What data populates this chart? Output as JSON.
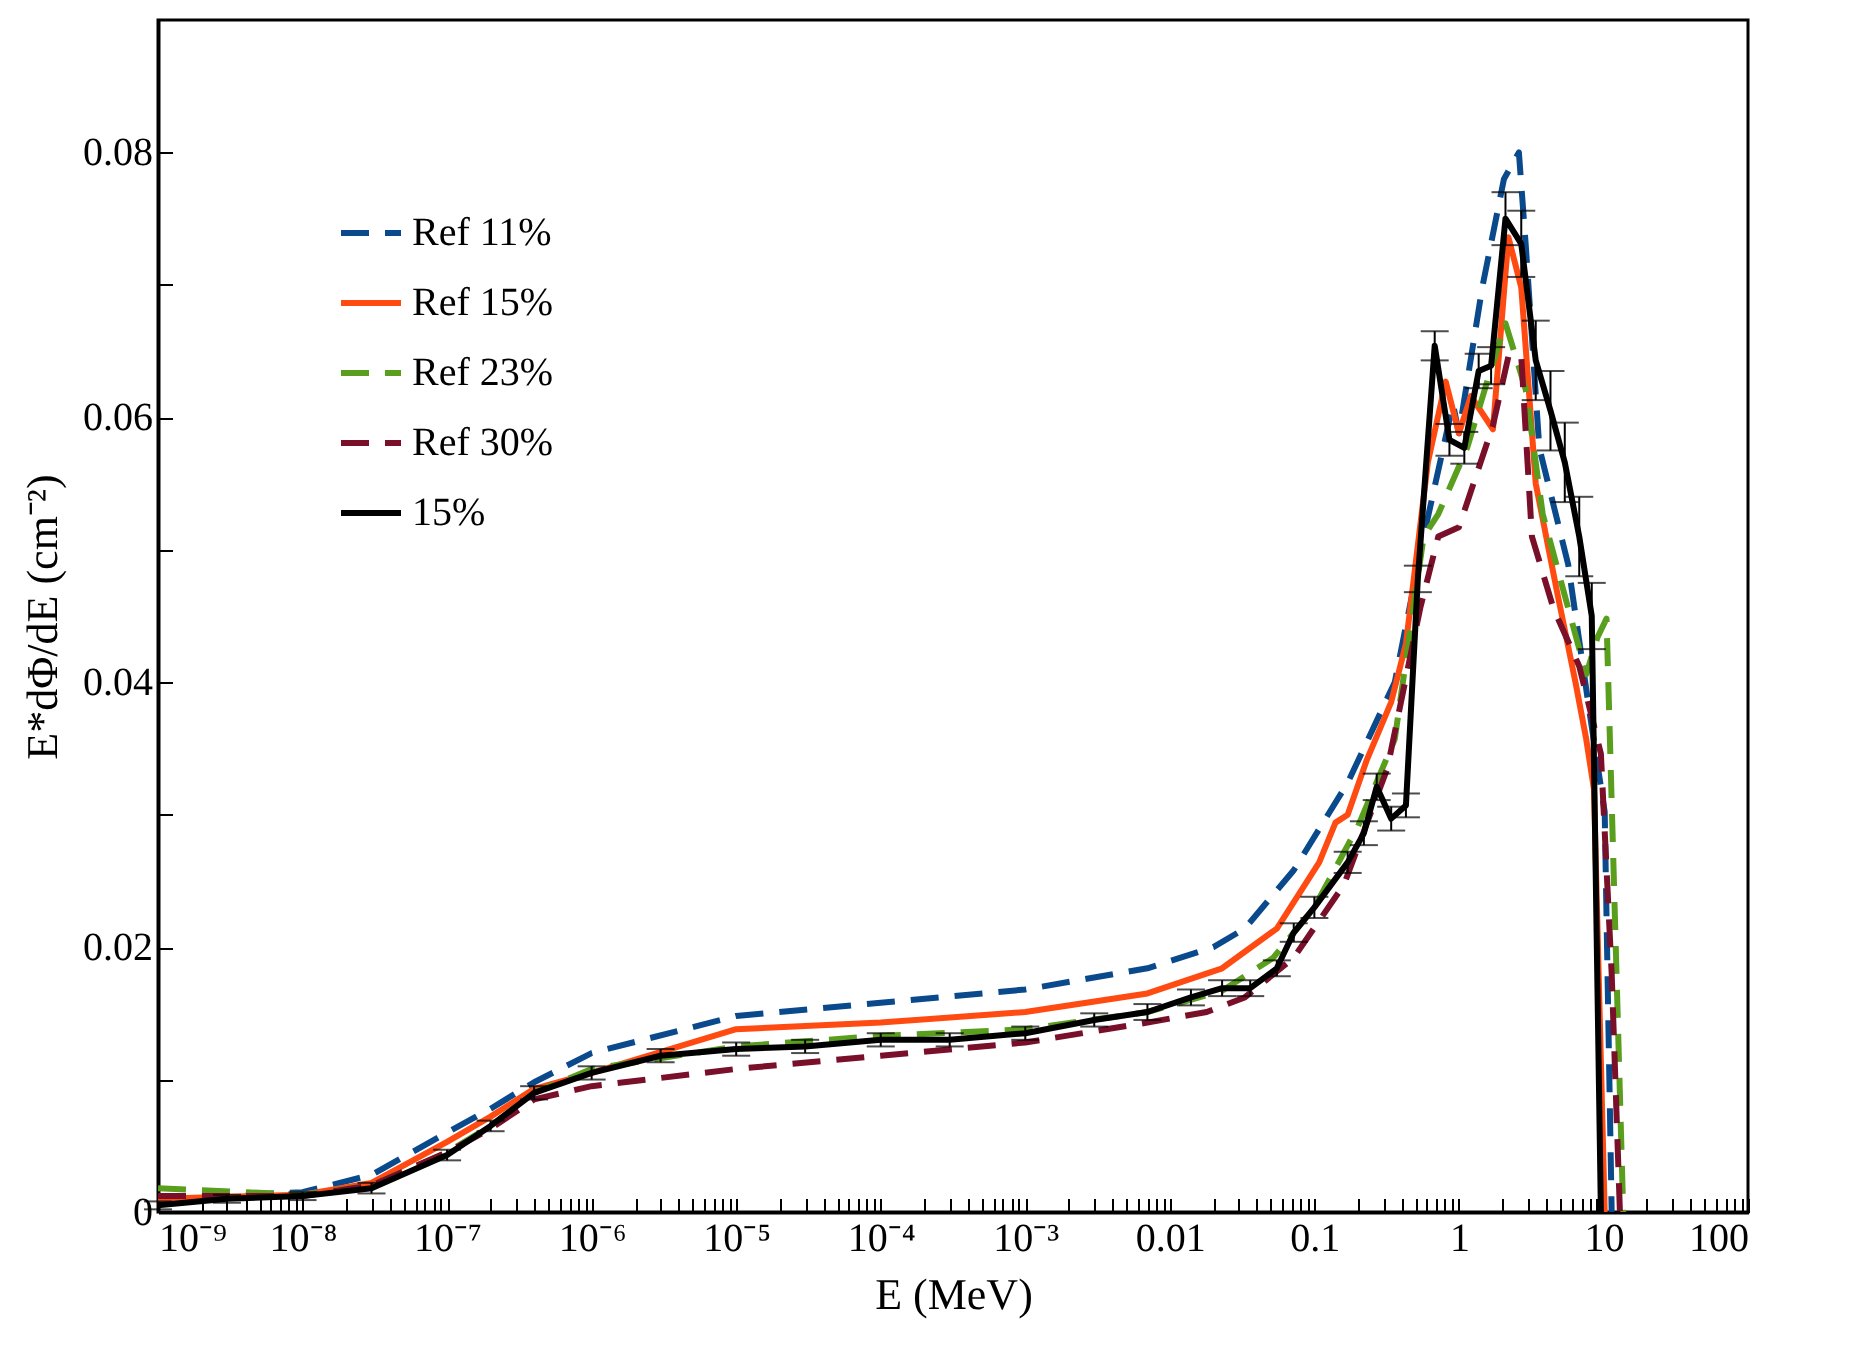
{
  "chart_data": {
    "type": "line",
    "xlabel": "E (MeV)",
    "ylabel": "E*dΦ/dE (cm⁻²)",
    "log": "x",
    "xlim": [
      1e-09,
      100
    ],
    "ylim": [
      0,
      0.09
    ],
    "xticks": [
      {
        "value": 1e-09,
        "label": "10⁻⁹"
      },
      {
        "value": 2e-09,
        "label": null
      },
      {
        "value": 3e-09,
        "label": null
      },
      {
        "value": 4e-09,
        "label": null
      },
      {
        "value": 5e-09,
        "label": null
      },
      {
        "value": 6e-09,
        "label": null
      },
      {
        "value": 7e-09,
        "label": null
      },
      {
        "value": 8e-09,
        "label": null
      },
      {
        "value": 9e-09,
        "label": null
      },
      {
        "value": 1e-08,
        "label": "10⁻⁸"
      },
      {
        "value": 2e-08,
        "label": null
      },
      {
        "value": 3e-08,
        "label": null
      },
      {
        "value": 4e-08,
        "label": null
      },
      {
        "value": 5e-08,
        "label": null
      },
      {
        "value": 6e-08,
        "label": null
      },
      {
        "value": 7e-08,
        "label": null
      },
      {
        "value": 8e-08,
        "label": null
      },
      {
        "value": 9e-08,
        "label": null
      },
      {
        "value": 1e-07,
        "label": "10⁻⁷"
      },
      {
        "value": 2e-07,
        "label": null
      },
      {
        "value": 3e-07,
        "label": null
      },
      {
        "value": 4e-07,
        "label": null
      },
      {
        "value": 5e-07,
        "label": null
      },
      {
        "value": 6e-07,
        "label": null
      },
      {
        "value": 7e-07,
        "label": null
      },
      {
        "value": 8e-07,
        "label": null
      },
      {
        "value": 9e-07,
        "label": null
      },
      {
        "value": 1e-06,
        "label": "10⁻⁶"
      },
      {
        "value": 2e-06,
        "label": null
      },
      {
        "value": 3e-06,
        "label": null
      },
      {
        "value": 4e-06,
        "label": null
      },
      {
        "value": 5e-06,
        "label": null
      },
      {
        "value": 6e-06,
        "label": null
      },
      {
        "value": 7e-06,
        "label": null
      },
      {
        "value": 8e-06,
        "label": null
      },
      {
        "value": 9e-06,
        "label": null
      },
      {
        "value": 1e-05,
        "label": "10⁻⁵"
      },
      {
        "value": 2e-05,
        "label": null
      },
      {
        "value": 3e-05,
        "label": null
      },
      {
        "value": 4e-05,
        "label": null
      },
      {
        "value": 5e-05,
        "label": null
      },
      {
        "value": 6e-05,
        "label": null
      },
      {
        "value": 7e-05,
        "label": null
      },
      {
        "value": 8e-05,
        "label": null
      },
      {
        "value": 9e-05,
        "label": null
      },
      {
        "value": 0.0001,
        "label": "10⁻⁴"
      },
      {
        "value": 0.0002,
        "label": null
      },
      {
        "value": 0.0003,
        "label": null
      },
      {
        "value": 0.0004,
        "label": null
      },
      {
        "value": 0.0005,
        "label": null
      },
      {
        "value": 0.0006,
        "label": null
      },
      {
        "value": 0.0007,
        "label": null
      },
      {
        "value": 0.0008,
        "label": null
      },
      {
        "value": 0.0009,
        "label": null
      },
      {
        "value": 0.001,
        "label": "10⁻³"
      },
      {
        "value": 0.002,
        "label": null
      },
      {
        "value": 0.003,
        "label": null
      },
      {
        "value": 0.004,
        "label": null
      },
      {
        "value": 0.005,
        "label": null
      },
      {
        "value": 0.006,
        "label": null
      },
      {
        "value": 0.007,
        "label": null
      },
      {
        "value": 0.008,
        "label": null
      },
      {
        "value": 0.009,
        "label": null
      },
      0.01,
      {
        "value": 0.02,
        "label": null
      },
      {
        "value": 0.03,
        "label": null
      },
      {
        "value": 0.04,
        "label": null
      },
      {
        "value": 0.05,
        "label": null
      },
      {
        "value": 0.06,
        "label": null
      },
      {
        "value": 0.07,
        "label": null
      },
      {
        "value": 0.08,
        "label": null
      },
      {
        "value": 0.09,
        "label": null
      },
      0.1,
      {
        "value": 0.2,
        "label": null
      },
      {
        "value": 0.3,
        "label": null
      },
      {
        "value": 0.4,
        "label": null
      },
      {
        "value": 0.5,
        "label": null
      },
      {
        "value": 0.6,
        "label": null
      },
      {
        "value": 0.7,
        "label": null
      },
      {
        "value": 0.8,
        "label": null
      },
      {
        "value": 0.9,
        "label": null
      },
      1,
      {
        "value": 2,
        "label": null
      },
      {
        "value": 3,
        "label": null
      },
      {
        "value": 4,
        "label": null
      },
      {
        "value": 5,
        "label": null
      },
      {
        "value": 6,
        "label": null
      },
      {
        "value": 7,
        "label": null
      },
      {
        "value": 8,
        "label": null
      },
      {
        "value": 9,
        "label": null
      },
      10,
      {
        "value": 20,
        "label": null
      },
      {
        "value": 30,
        "label": null
      },
      {
        "value": 40,
        "label": null
      },
      {
        "value": 50,
        "label": null
      },
      {
        "value": 60,
        "label": null
      },
      {
        "value": 70,
        "label": null
      },
      {
        "value": 80,
        "label": null
      },
      {
        "value": 90,
        "label": null
      },
      100
    ],
    "yticks": [
      0,
      {
        "value": 0.01,
        "label": null
      },
      0.02,
      {
        "value": 0.03,
        "label": null
      },
      0.04,
      {
        "value": 0.05,
        "label": null
      },
      0.06,
      {
        "value": 0.07,
        "label": null
      },
      0.08
    ],
    "legend": "top left",
    "grid": false,
    "series": [
      {
        "name": "Ref 11%",
        "color": "#0a4a8c",
        "line_style": "dashed",
        "x": [
          1e-09,
          1e-08,
          3e-08,
          1e-07,
          2e-07,
          4e-07,
          1e-06,
          1e-05,
          0.0001,
          0.001,
          0.007,
          0.02,
          0.033,
          0.072,
          0.17,
          0.36,
          0.57,
          0.91,
          1.0,
          1.45,
          2.05,
          2.6,
          2.9,
          3.6,
          5.7,
          8.1,
          10.2,
          11.4
        ],
        "values": [
          0.001,
          0.0015,
          0.0028,
          0.006,
          0.0078,
          0.0098,
          0.012,
          0.0148,
          0.0158,
          0.0168,
          0.0184,
          0.02,
          0.0214,
          0.0258,
          0.0324,
          0.04,
          0.051,
          0.061,
          0.0588,
          0.0698,
          0.078,
          0.08,
          0.073,
          0.0577,
          0.0489,
          0.0374,
          0.0302,
          0
        ]
      },
      {
        "name": "Ref 15%",
        "color": "#ff4a12",
        "line_style": "solid",
        "x": [
          1e-09,
          1e-08,
          3e-08,
          1e-07,
          2e-07,
          4e-07,
          1e-06,
          1e-05,
          0.0001,
          0.001,
          0.007,
          0.023,
          0.055,
          0.108,
          0.14,
          0.17,
          0.23,
          0.34,
          0.43,
          0.61,
          0.81,
          1.0,
          1.21,
          1.72,
          2.2,
          2.7,
          3.4,
          4.8,
          6.4,
          7.6,
          8.6,
          10.2
        ],
        "values": [
          0.001,
          0.0013,
          0.0022,
          0.0053,
          0.0072,
          0.0093,
          0.0105,
          0.0138,
          0.0143,
          0.0151,
          0.0165,
          0.0184,
          0.0214,
          0.0264,
          0.0294,
          0.03,
          0.0341,
          0.0385,
          0.0429,
          0.0566,
          0.0627,
          0.0588,
          0.0616,
          0.0591,
          0.0736,
          0.0698,
          0.055,
          0.0467,
          0.04,
          0.0357,
          0.0319,
          0
        ]
      },
      {
        "name": "Ref 23%",
        "color": "#5a9e1e",
        "line_style": "dashed",
        "x": [
          1e-09,
          1e-08,
          3e-08,
          1e-07,
          2e-07,
          4e-07,
          1e-06,
          1e-05,
          0.0001,
          0.001,
          0.007,
          0.023,
          0.052,
          0.1,
          0.2,
          0.36,
          0.57,
          0.72,
          1.14,
          1.62,
          2.1,
          2.9,
          3.8,
          5.7,
          7.6,
          9.1,
          10.5,
          13.7
        ],
        "values": [
          0.0018,
          0.0013,
          0.002,
          0.0045,
          0.0065,
          0.009,
          0.0108,
          0.0125,
          0.0133,
          0.0138,
          0.0151,
          0.0167,
          0.0192,
          0.023,
          0.0291,
          0.0357,
          0.051,
          0.0527,
          0.0577,
          0.0632,
          0.0671,
          0.0621,
          0.0527,
          0.0456,
          0.0406,
          0.0434,
          0.0448,
          0
        ]
      },
      {
        "name": "Ref 30%",
        "color": "#7a0f2a",
        "line_style": "dashed",
        "x": [
          1e-09,
          1e-08,
          3e-08,
          1e-07,
          2e-07,
          4e-07,
          1e-06,
          1e-05,
          0.0001,
          0.001,
          0.007,
          0.018,
          0.033,
          0.072,
          0.16,
          0.32,
          0.54,
          0.72,
          1.0,
          1.72,
          2.2,
          2.7,
          3.2,
          4.5,
          6.8,
          9.6,
          11.4,
          13
        ],
        "values": [
          0.0012,
          0.0012,
          0.002,
          0.0045,
          0.0063,
          0.0085,
          0.0095,
          0.0108,
          0.0118,
          0.0128,
          0.0143,
          0.0151,
          0.0162,
          0.0192,
          0.0247,
          0.0335,
          0.0456,
          0.051,
          0.0517,
          0.0594,
          0.0646,
          0.0646,
          0.051,
          0.0456,
          0.0412,
          0.0346,
          0.018,
          0
        ]
      },
      {
        "name": "15%",
        "color": "#000000",
        "line_style": "solid",
        "x": [
          1e-09,
          3e-09,
          1e-08,
          3e-08,
          1e-07,
          2e-07,
          4e-07,
          1e-06,
          3e-06,
          1e-05,
          3e-05,
          0.0001,
          0.0003,
          0.001,
          0.003,
          0.007,
          0.014,
          0.023,
          0.036,
          0.055,
          0.072,
          0.1,
          0.17,
          0.22,
          0.27,
          0.34,
          0.43,
          0.52,
          0.68,
          0.86,
          1.09,
          1.37,
          1.67,
          2.1,
          2.7,
          3.4,
          4.3,
          5.4,
          6.8,
          8.3,
          9.6
        ],
        "values": [
          0.0005,
          0.001,
          0.0012,
          0.0018,
          0.0043,
          0.0065,
          0.009,
          0.0105,
          0.0118,
          0.0123,
          0.0125,
          0.013,
          0.013,
          0.0135,
          0.0145,
          0.0151,
          0.0162,
          0.0169,
          0.0169,
          0.0184,
          0.0211,
          0.023,
          0.0264,
          0.0286,
          0.0321,
          0.0297,
          0.0307,
          0.0478,
          0.0654,
          0.0583,
          0.0577,
          0.0635,
          0.0639,
          0.075,
          0.0731,
          0.0643,
          0.0605,
          0.0566,
          0.051,
          0.045,
          0
        ],
        "errors": [
          0.0003,
          0.0003,
          0.0003,
          0.0004,
          0.0004,
          0.0004,
          0.0005,
          0.0005,
          0.0005,
          0.0005,
          0.0005,
          0.0005,
          0.0005,
          0.0005,
          0.0005,
          0.0006,
          0.0006,
          0.0006,
          0.0006,
          0.0006,
          0.0007,
          0.0008,
          0.0008,
          0.0009,
          0.001,
          0.0009,
          0.0009,
          0.001,
          0.0011,
          0.0012,
          0.0012,
          0.0013,
          0.0014,
          0.002,
          0.0025,
          0.003,
          0.003,
          0.003,
          0.003,
          0.0025,
          null
        ]
      }
    ]
  }
}
